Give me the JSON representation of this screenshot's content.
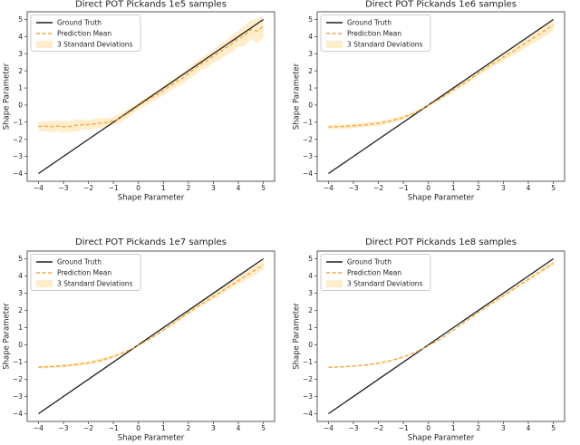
{
  "figure": {
    "background": "#ffffff"
  },
  "style": {
    "ground_truth_color": "#1c1c1c",
    "prediction_color": "#efa63c",
    "band_color": "#ffedcc",
    "axis_color": "#5a5a5a",
    "text_color": "#1f1f1f",
    "legend_border_color": "#cccccc",
    "legend_background": "#ffffff"
  },
  "chart_data": [
    {
      "type": "line",
      "title": "Direct POT Pickands 1e5 samples",
      "xlabel": "Shape Parameter",
      "ylabel": "Shape Parameter",
      "xlim": [
        -4.45,
        5.45
      ],
      "ylim": [
        -4.45,
        5.45
      ],
      "xticks": [
        -4,
        -3,
        -2,
        -1,
        0,
        1,
        2,
        3,
        4,
        5
      ],
      "yticks": [
        -4,
        -3,
        -2,
        -1,
        0,
        1,
        2,
        3,
        4,
        5
      ],
      "grid": false,
      "legend": [
        "Ground Truth",
        "Prediction Mean",
        "3 Standard Deviations"
      ],
      "legend_position": "upper left",
      "series": {
        "ground_truth": {
          "label": "Ground Truth",
          "x": [
            -4,
            5
          ],
          "y": [
            -4,
            5
          ]
        },
        "prediction_mean": {
          "label": "Prediction Mean",
          "x": [
            -4,
            -3.75,
            -3.5,
            -3.25,
            -3,
            -2.75,
            -2.5,
            -2.25,
            -2,
            -1.75,
            -1.5,
            -1.25,
            -1,
            -0.75,
            -0.5,
            -0.25,
            0,
            0.25,
            0.5,
            0.75,
            1,
            1.25,
            1.5,
            1.75,
            2,
            2.25,
            2.5,
            2.75,
            3,
            3.25,
            3.5,
            3.75,
            4,
            4.25,
            4.5,
            4.75,
            5
          ],
          "y": [
            -1.25,
            -1.22,
            -1.27,
            -1.22,
            -1.26,
            -1.25,
            -1.18,
            -1.15,
            -1.14,
            -1.1,
            -1.05,
            -1.02,
            -0.92,
            -0.78,
            -0.55,
            -0.32,
            -0.05,
            0.18,
            0.42,
            0.6,
            0.85,
            1.12,
            1.35,
            1.55,
            1.85,
            2.12,
            2.4,
            2.58,
            2.85,
            3.08,
            3.35,
            3.58,
            3.88,
            4.05,
            4.42,
            4.32,
            4.6
          ]
        },
        "band": {
          "label": "3 Standard Deviations",
          "halfwidth": [
            0.3,
            0.28,
            0.33,
            0.3,
            0.34,
            0.3,
            0.36,
            0.3,
            0.28,
            0.3,
            0.28,
            0.26,
            0.25,
            0.28,
            0.25,
            0.22,
            0.2,
            0.22,
            0.25,
            0.26,
            0.28,
            0.3,
            0.3,
            0.35,
            0.32,
            0.38,
            0.35,
            0.42,
            0.38,
            0.46,
            0.42,
            0.52,
            0.46,
            0.62,
            0.55,
            0.72,
            0.62
          ]
        }
      }
    },
    {
      "type": "line",
      "title": "Direct POT Pickands 1e6 samples",
      "xlabel": "Shape Parameter",
      "ylabel": "Shape Parameter",
      "xlim": [
        -4.45,
        5.45
      ],
      "ylim": [
        -4.45,
        5.45
      ],
      "xticks": [
        -4,
        -3,
        -2,
        -1,
        0,
        1,
        2,
        3,
        4,
        5
      ],
      "yticks": [
        -4,
        -3,
        -2,
        -1,
        0,
        1,
        2,
        3,
        4,
        5
      ],
      "grid": false,
      "legend": [
        "Ground Truth",
        "Prediction Mean",
        "3 Standard Deviations"
      ],
      "legend_position": "upper left",
      "series": {
        "ground_truth": {
          "label": "Ground Truth",
          "x": [
            -4,
            5
          ],
          "y": [
            -4,
            5
          ]
        },
        "prediction_mean": {
          "label": "Prediction Mean",
          "x": [
            -4,
            -3.5,
            -3,
            -2.5,
            -2,
            -1.5,
            -1,
            -0.5,
            0,
            0.5,
            1,
            1.5,
            2,
            2.5,
            3,
            3.5,
            4,
            4.5,
            5
          ],
          "y": [
            -1.28,
            -1.26,
            -1.21,
            -1.15,
            -1.07,
            -0.93,
            -0.72,
            -0.42,
            -0.02,
            0.4,
            0.88,
            1.34,
            1.88,
            2.35,
            2.8,
            3.25,
            3.74,
            4.2,
            4.68
          ]
        },
        "band": {
          "label": "3 Standard Deviations",
          "halfwidth": [
            0.14,
            0.13,
            0.14,
            0.13,
            0.14,
            0.13,
            0.12,
            0.1,
            0.08,
            0.09,
            0.11,
            0.13,
            0.16,
            0.18,
            0.22,
            0.26,
            0.3,
            0.33,
            0.36
          ]
        }
      }
    },
    {
      "type": "line",
      "title": "Direct POT Pickands 1e7 samples",
      "xlabel": "Shape Parameter",
      "ylabel": "Shape Parameter",
      "xlim": [
        -4.45,
        5.45
      ],
      "ylim": [
        -4.45,
        5.45
      ],
      "xticks": [
        -4,
        -3,
        -2,
        -1,
        0,
        1,
        2,
        3,
        4,
        5
      ],
      "yticks": [
        -4,
        -3,
        -2,
        -1,
        0,
        1,
        2,
        3,
        4,
        5
      ],
      "grid": false,
      "legend": [
        "Ground Truth",
        "Prediction Mean",
        "3 Standard Deviations"
      ],
      "legend_position": "upper left",
      "series": {
        "ground_truth": {
          "label": "Ground Truth",
          "x": [
            -4,
            5
          ],
          "y": [
            -4,
            5
          ]
        },
        "prediction_mean": {
          "label": "Prediction Mean",
          "x": [
            -4,
            -3.5,
            -3,
            -2.5,
            -2,
            -1.5,
            -1,
            -0.5,
            0,
            0.5,
            1,
            1.5,
            2,
            2.5,
            3,
            3.5,
            4,
            4.5,
            5
          ],
          "y": [
            -1.3,
            -1.27,
            -1.22,
            -1.15,
            -1.05,
            -0.9,
            -0.68,
            -0.4,
            -0.03,
            0.38,
            0.86,
            1.36,
            1.87,
            2.35,
            2.8,
            3.27,
            3.73,
            4.19,
            4.65
          ]
        },
        "band": {
          "label": "3 Standard Deviations",
          "halfwidth": [
            0.08,
            0.08,
            0.09,
            0.09,
            0.1,
            0.11,
            0.09,
            0.07,
            0.05,
            0.05,
            0.06,
            0.08,
            0.1,
            0.12,
            0.15,
            0.18,
            0.22,
            0.25,
            0.28
          ]
        }
      }
    },
    {
      "type": "line",
      "title": "Direct POT Pickands 1e8 samples",
      "xlabel": "Shape Parameter",
      "ylabel": "Shape Parameter",
      "xlim": [
        -4.45,
        5.45
      ],
      "ylim": [
        -4.45,
        5.45
      ],
      "xticks": [
        -4,
        -3,
        -2,
        -1,
        0,
        1,
        2,
        3,
        4,
        5
      ],
      "yticks": [
        -4,
        -3,
        -2,
        -1,
        0,
        1,
        2,
        3,
        4,
        5
      ],
      "grid": false,
      "legend": [
        "Ground Truth",
        "Prediction Mean",
        "3 Standard Deviations"
      ],
      "legend_position": "upper left",
      "series": {
        "ground_truth": {
          "label": "Ground Truth",
          "x": [
            -4,
            5
          ],
          "y": [
            -4,
            5
          ]
        },
        "prediction_mean": {
          "label": "Prediction Mean",
          "x": [
            -4,
            -3.5,
            -3,
            -2.5,
            -2,
            -1.5,
            -1,
            -0.5,
            0,
            0.5,
            1,
            1.5,
            2,
            2.5,
            3,
            3.5,
            4,
            4.5,
            5
          ],
          "y": [
            -1.3,
            -1.28,
            -1.24,
            -1.17,
            -1.07,
            -0.92,
            -0.7,
            -0.42,
            -0.05,
            0.35,
            0.85,
            1.37,
            1.89,
            2.37,
            2.85,
            3.33,
            3.8,
            4.28,
            4.75
          ]
        },
        "band": {
          "label": "3 Standard Deviations",
          "halfwidth": [
            0.04,
            0.04,
            0.04,
            0.05,
            0.05,
            0.05,
            0.04,
            0.03,
            0.02,
            0.02,
            0.03,
            0.04,
            0.05,
            0.06,
            0.07,
            0.08,
            0.1,
            0.12,
            0.14
          ]
        }
      }
    }
  ]
}
